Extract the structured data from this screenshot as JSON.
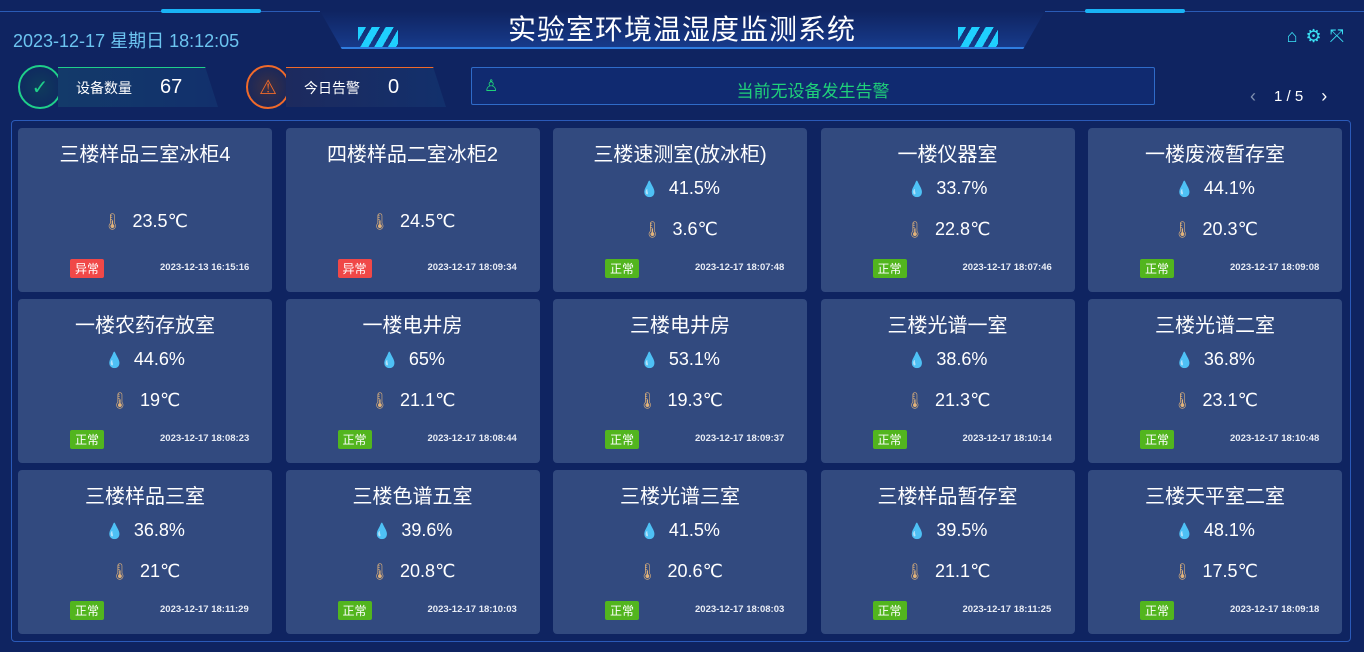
{
  "header": {
    "title": "实验室环境温湿度监测系统",
    "datetime": "2023-12-17 星期日 18:12:05",
    "icons": [
      "home-icon",
      "gear-icon",
      "fullscreen-icon"
    ]
  },
  "stats": {
    "device_label": "设备数量",
    "device_count": "67",
    "alarm_label": "今日告警",
    "alarm_count": "0"
  },
  "alert": {
    "icon": "alarm-light-icon",
    "text": "当前无设备发生告警",
    "color": "#1fd17a"
  },
  "pager": {
    "page": "1 / 5"
  },
  "colors": {
    "normal": "#52b51e",
    "abnormal": "#f04848",
    "card": "#324a7f",
    "bg": "#0f2461"
  },
  "cards": [
    {
      "name": "三楼样品三室冰柜4",
      "humidity": null,
      "temp": "23.5℃",
      "status": "异常",
      "ok": false,
      "time": "2023-12-13 16:15:16"
    },
    {
      "name": "四楼样品二室冰柜2",
      "humidity": null,
      "temp": "24.5℃",
      "status": "异常",
      "ok": false,
      "time": "2023-12-17 18:09:34"
    },
    {
      "name": "三楼速测室(放冰柜)",
      "humidity": "41.5%",
      "temp": "3.6℃",
      "status": "正常",
      "ok": true,
      "time": "2023-12-17 18:07:48"
    },
    {
      "name": "一楼仪器室",
      "humidity": "33.7%",
      "temp": "22.8℃",
      "status": "正常",
      "ok": true,
      "time": "2023-12-17 18:07:46"
    },
    {
      "name": "一楼废液暂存室",
      "humidity": "44.1%",
      "temp": "20.3℃",
      "status": "正常",
      "ok": true,
      "time": "2023-12-17 18:09:08"
    },
    {
      "name": "一楼农药存放室",
      "humidity": "44.6%",
      "temp": "19℃",
      "status": "正常",
      "ok": true,
      "time": "2023-12-17 18:08:23"
    },
    {
      "name": "一楼电井房",
      "humidity": "65%",
      "temp": "21.1℃",
      "status": "正常",
      "ok": true,
      "time": "2023-12-17 18:08:44"
    },
    {
      "name": "三楼电井房",
      "humidity": "53.1%",
      "temp": "19.3℃",
      "status": "正常",
      "ok": true,
      "time": "2023-12-17 18:09:37"
    },
    {
      "name": "三楼光谱一室",
      "humidity": "38.6%",
      "temp": "21.3℃",
      "status": "正常",
      "ok": true,
      "time": "2023-12-17 18:10:14"
    },
    {
      "name": "三楼光谱二室",
      "humidity": "36.8%",
      "temp": "23.1℃",
      "status": "正常",
      "ok": true,
      "time": "2023-12-17 18:10:48"
    },
    {
      "name": "三楼样品三室",
      "humidity": "36.8%",
      "temp": "21℃",
      "status": "正常",
      "ok": true,
      "time": "2023-12-17 18:11:29"
    },
    {
      "name": "三楼色谱五室",
      "humidity": "39.6%",
      "temp": "20.8℃",
      "status": "正常",
      "ok": true,
      "time": "2023-12-17 18:10:03"
    },
    {
      "name": "三楼光谱三室",
      "humidity": "41.5%",
      "temp": "20.6℃",
      "status": "正常",
      "ok": true,
      "time": "2023-12-17 18:08:03"
    },
    {
      "name": "三楼样品暂存室",
      "humidity": "39.5%",
      "temp": "21.1℃",
      "status": "正常",
      "ok": true,
      "time": "2023-12-17 18:11:25"
    },
    {
      "name": "三楼天平室二室",
      "humidity": "48.1%",
      "temp": "17.5℃",
      "status": "正常",
      "ok": true,
      "time": "2023-12-17 18:09:18"
    }
  ]
}
